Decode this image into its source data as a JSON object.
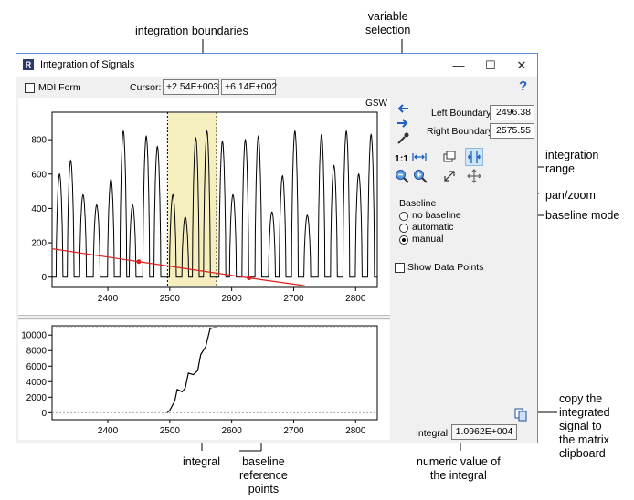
{
  "annotations": {
    "integration_boundaries": "integration boundaries",
    "variable_selection": [
      "variable",
      "selection"
    ],
    "integration_range": [
      "integration",
      "range"
    ],
    "pan_zoom": "pan/zoom",
    "baseline_mode": "baseline mode",
    "copy_integrated": [
      "copy the",
      "integrated",
      "signal to",
      "the matrix",
      "clipboard"
    ],
    "integral": "integral",
    "baseline_reference_points": [
      "baseline",
      "reference",
      "points"
    ],
    "numeric_value": [
      "numeric value of",
      "the integral"
    ]
  },
  "window": {
    "title": "Integration of Signals",
    "app_icon_letter": "R",
    "controls": {
      "minimize": "—",
      "maximize": "☐",
      "close": "✕"
    }
  },
  "toolbar": {
    "mdi_form_label": "MDI Form",
    "mdi_form_checked": false,
    "cursor_label": "Cursor:",
    "cursor_x": "+2.54E+003",
    "cursor_y": "+6.14E+002",
    "help": "?"
  },
  "signal_plot": {
    "variable_name": "GSW",
    "highlight_range": [
      2496.38,
      2575.55
    ]
  },
  "right_panel": {
    "left_boundary_label": "Left Boundary",
    "left_boundary_value": "2496.38",
    "right_boundary_label": "Right Boundary",
    "right_boundary_value": "2575.55",
    "zoom_reset_label": "1:1",
    "baseline_heading": "Baseline",
    "baseline_options": [
      "no baseline",
      "automatic",
      "manual"
    ],
    "baseline_selected": "manual",
    "show_points_label": "Show Data Points",
    "show_points_checked": false,
    "integral_label": "Integral",
    "integral_value": "1.0962E+004"
  },
  "icons": {
    "left_arrow": "arrow-left-icon",
    "right_arrow": "arrow-right-icon",
    "picker": "eyedropper-icon",
    "copy": "copy-icon",
    "accent": "#1f5fbf",
    "baseline_color": "#e02020",
    "highlight_color": "#f5efc0"
  },
  "chart_data": [
    {
      "type": "line",
      "xlim": [
        2310,
        2835
      ],
      "ylim": [
        -60,
        960
      ],
      "xticks": [
        "2400",
        "2500",
        "2600",
        "2700",
        "2800"
      ],
      "yticks": [
        "0",
        "200",
        "400",
        "600",
        "800"
      ],
      "peak_centers": [
        2322,
        2340,
        2360,
        2382,
        2405,
        2425,
        2440,
        2462,
        2480,
        2505,
        2525,
        2542,
        2560,
        2585,
        2602,
        2622,
        2643,
        2665,
        2682,
        2702,
        2722,
        2745,
        2765,
        2785,
        2805,
        2825
      ],
      "peak_heights": [
        600,
        680,
        480,
        420,
        570,
        850,
        420,
        820,
        760,
        480,
        350,
        810,
        850,
        790,
        480,
        800,
        820,
        380,
        590,
        850,
        360,
        830,
        650,
        850,
        600,
        830
      ],
      "baseline": {
        "x": [
          2310,
          2450,
          2628,
          2718
        ],
        "y": [
          165,
          90,
          -5,
          -50
        ]
      },
      "reference_points": {
        "x": [
          2450,
          2628
        ],
        "y": [
          90,
          -5
        ]
      }
    },
    {
      "type": "line",
      "xlim": [
        2310,
        2835
      ],
      "ylim": [
        -900,
        11200
      ],
      "xticks": [
        "2400",
        "2500",
        "2600",
        "2700",
        "2800"
      ],
      "yticks": [
        "0",
        "2000",
        "4000",
        "6000",
        "8000",
        "10000"
      ],
      "x": [
        2496,
        2500,
        2508,
        2512,
        2520,
        2525,
        2530,
        2538,
        2545,
        2550,
        2558,
        2565,
        2568,
        2575
      ],
      "y": [
        0,
        300,
        1500,
        3000,
        2700,
        3200,
        5100,
        4900,
        5400,
        7500,
        8500,
        10800,
        10900,
        10962
      ]
    }
  ]
}
